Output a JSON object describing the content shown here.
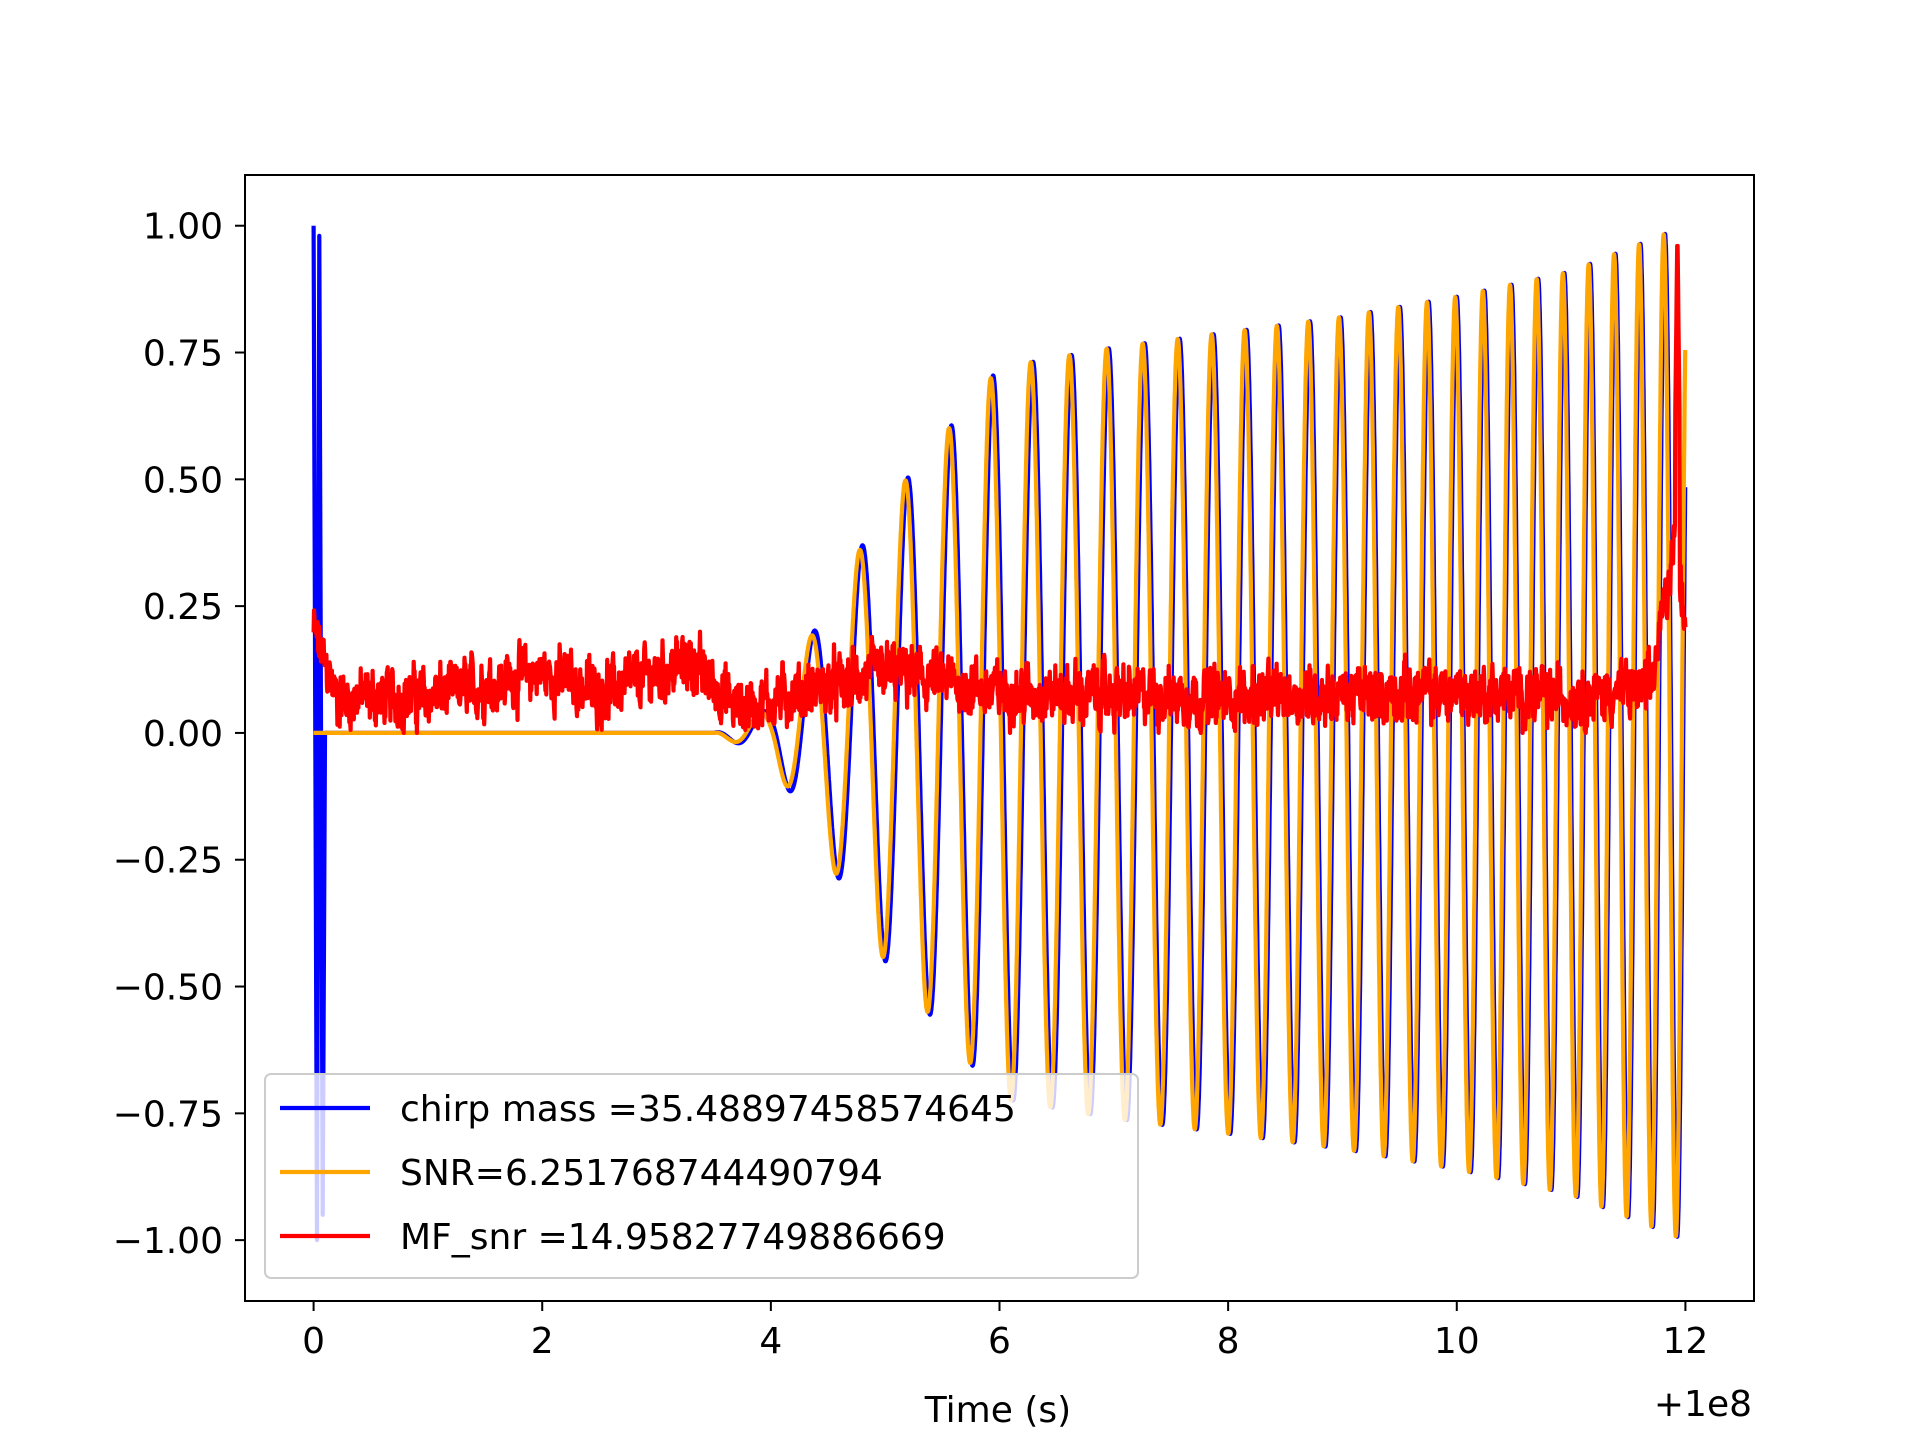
{
  "chart_data": {
    "type": "line",
    "xlabel": "Time (s)",
    "ylabel": "",
    "x_offset_label": "+1e8",
    "xlim": [
      -0.6,
      12.6
    ],
    "ylim": [
      -1.12,
      1.1
    ],
    "xticks": [
      0,
      2,
      4,
      6,
      8,
      10,
      12
    ],
    "xtick_labels": [
      "0",
      "2",
      "4",
      "6",
      "8",
      "10",
      "12"
    ],
    "yticks": [
      -1.0,
      -0.75,
      -0.5,
      -0.25,
      0.0,
      0.25,
      0.5,
      0.75,
      1.0
    ],
    "ytick_labels": [
      "−1.00",
      "−0.75",
      "−0.50",
      "−0.25",
      "0.00",
      "0.25",
      "0.50",
      "0.75",
      "1.00"
    ],
    "grid": false,
    "legend_position": "lower-left",
    "series": [
      {
        "name": "chirp mass =35.48897458574645",
        "color": "#0000ff",
        "description_points": {
          "x": [
            0.0,
            0.03,
            0.05,
            0.08,
            0.1,
            3.5,
            4.0,
            5.0,
            6.0,
            7.0,
            8.0,
            9.0,
            10.0,
            11.0,
            12.0
          ],
          "envelope": [
            1.0,
            -1.0,
            0.98,
            -0.95,
            0.0,
            0.0,
            0.05,
            0.45,
            0.72,
            0.76,
            0.79,
            0.82,
            0.86,
            0.91,
            1.0
          ]
        }
      },
      {
        "name": "SNR=6.251768744490794",
        "color": "#ffa500",
        "description_points": {
          "x": [
            0.0,
            3.5,
            4.0,
            5.0,
            6.0,
            7.0,
            8.0,
            9.0,
            10.0,
            11.0,
            12.0
          ],
          "envelope": [
            0.0,
            0.0,
            0.05,
            0.45,
            0.72,
            0.76,
            0.79,
            0.82,
            0.86,
            0.91,
            1.0
          ]
        }
      },
      {
        "name": "MF_snr =14.95827749886669",
        "color": "#ff0000",
        "description_points": {
          "x": [
            0.0,
            0.2,
            1.0,
            2.0,
            2.5,
            3.3,
            3.7,
            4.5,
            5.0,
            6.0,
            8.0,
            10.0,
            11.0,
            11.7,
            11.9,
            12.0
          ],
          "baseline": [
            0.2,
            0.07,
            0.07,
            0.12,
            0.08,
            0.14,
            0.05,
            0.09,
            0.12,
            0.08,
            0.07,
            0.08,
            0.07,
            0.09,
            0.38,
            0.23
          ],
          "peak": 1.0,
          "peak_x": 11.93
        }
      }
    ]
  }
}
